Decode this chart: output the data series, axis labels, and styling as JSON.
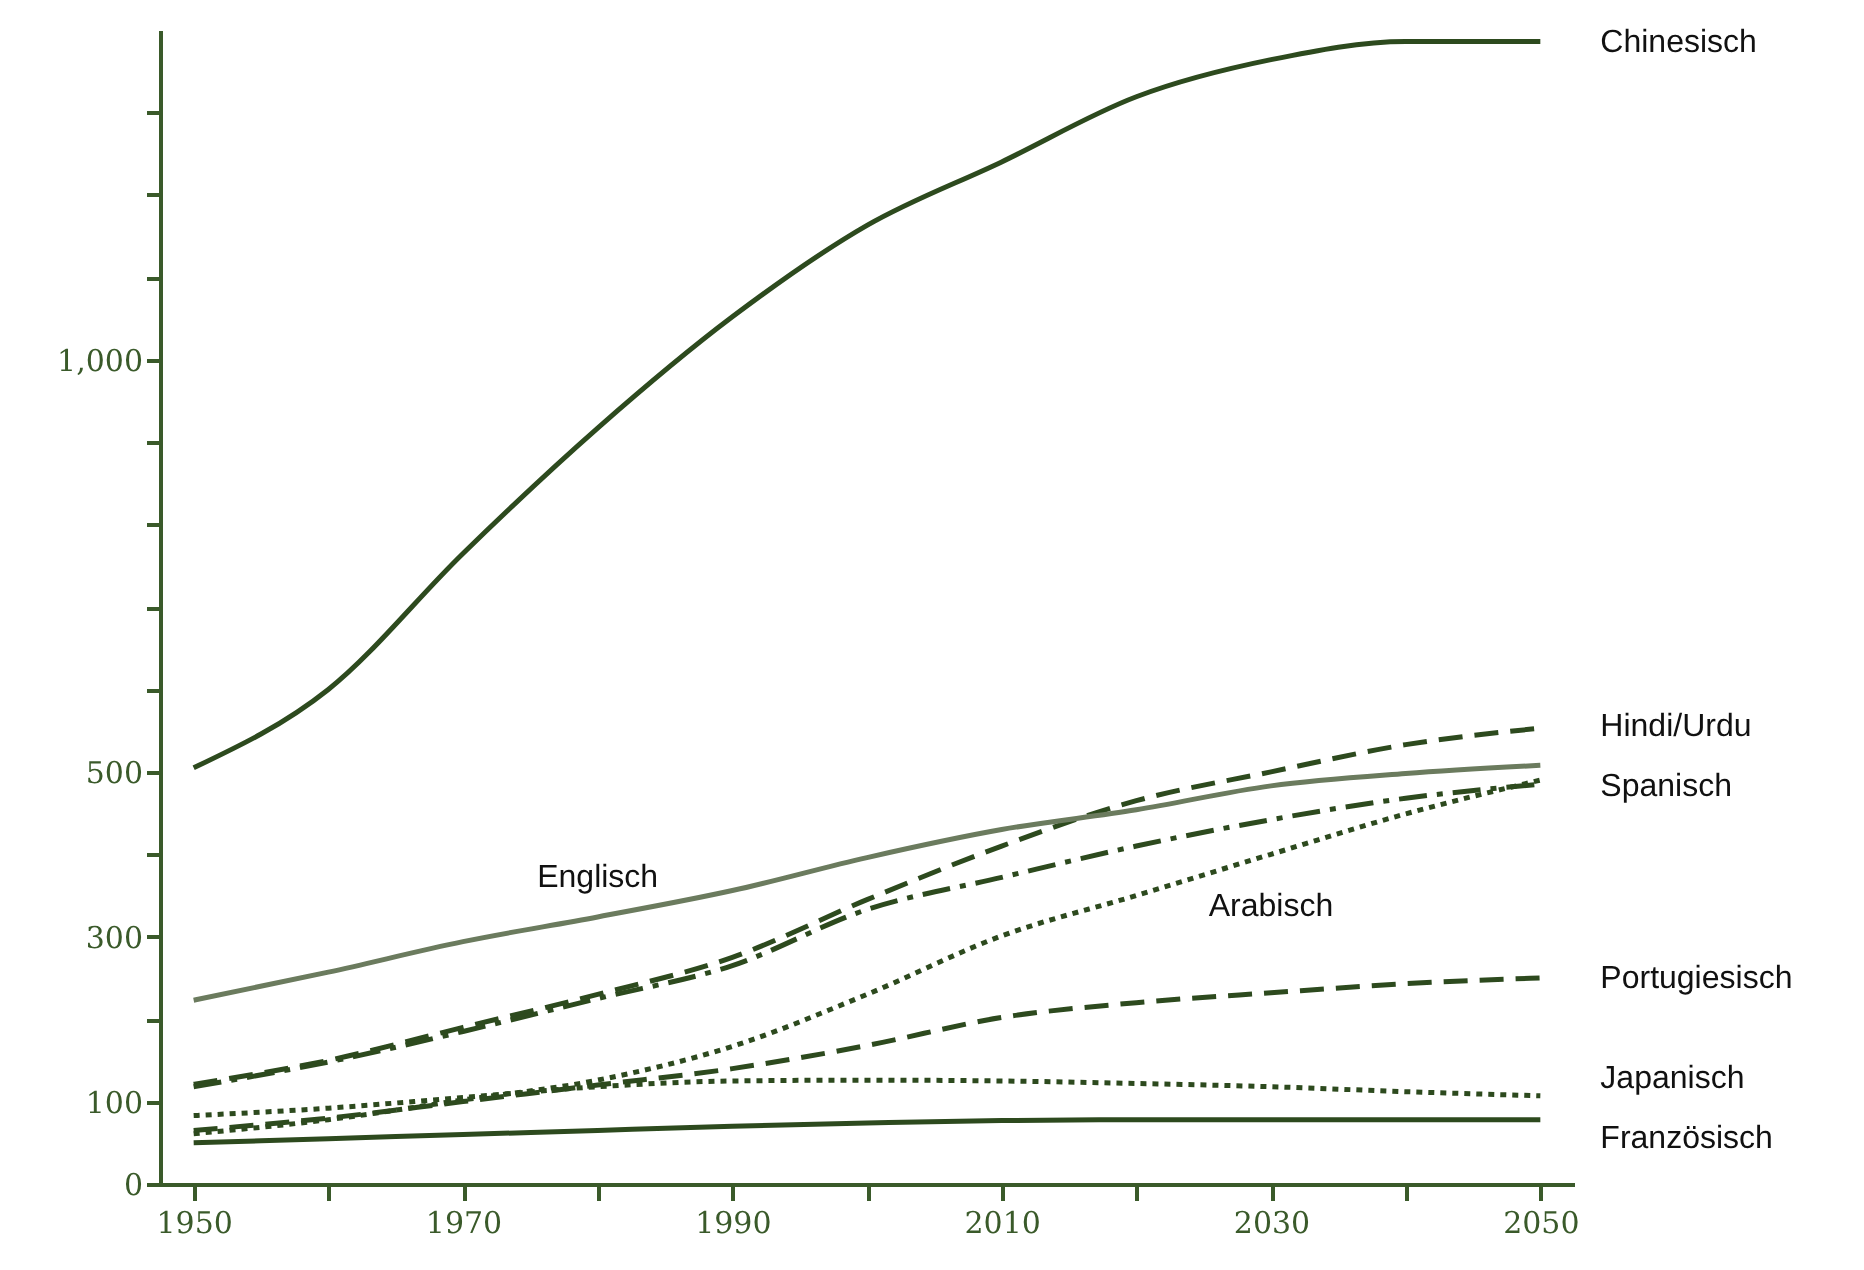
{
  "chart_data": {
    "type": "line",
    "x": [
      1950,
      1960,
      1970,
      1980,
      1990,
      2000,
      2010,
      2020,
      2030,
      2040,
      2050
    ],
    "xlim": [
      1947.5,
      2052.5
    ],
    "xticks": [
      1950,
      {
        "value": 1960,
        "label": null
      },
      1970,
      {
        "value": 1980,
        "label": null
      },
      1990,
      {
        "value": 2000,
        "label": null
      },
      2010,
      {
        "value": 2020,
        "label": null
      },
      2030,
      {
        "value": 2040,
        "label": null
      },
      2050
    ],
    "ylim": [
      0,
      1400
    ],
    "yticks": [
      0,
      100,
      {
        "value": 200,
        "label": null
      },
      300,
      {
        "value": 400,
        "label": null
      },
      500,
      {
        "value": 600,
        "label": null
      },
      {
        "value": 700,
        "label": null
      },
      {
        "value": 800,
        "label": null
      },
      {
        "value": 900,
        "label": null
      },
      {
        "value": 1000,
        "label": "1,000"
      },
      {
        "value": 1100,
        "label": null
      },
      {
        "value": 1200,
        "label": null
      },
      {
        "value": 1300,
        "label": null
      }
    ],
    "grid": false,
    "marker": "none",
    "annotations": [
      {
        "text": "Englisch",
        "x": 1980,
        "y": 324
      },
      {
        "text": "Arabisch",
        "x": 2030,
        "y": 400
      }
    ],
    "series": [
      {
        "name": "Chinesisch",
        "color": "#2d4a1e",
        "line_style": "solid",
        "values": [
          505,
          600,
          765,
          917,
          1052,
          1163,
          1240,
          1319,
          1364,
          1386,
          1386
        ]
      },
      {
        "name": "Hindi/Urdu",
        "color": "#2d4a1e",
        "line_style": "dashed",
        "values": [
          121,
          150,
          190,
          230,
          275,
          345,
          410,
          465,
          500,
          533,
          553
        ]
      },
      {
        "name": "Spanisch",
        "color": "#2d4a1e",
        "line_style": "dashdot",
        "values": [
          118,
          148,
          185,
          225,
          265,
          333,
          372,
          410,
          442,
          468,
          485
        ]
      },
      {
        "color": "#6b7b5e",
        "line_style": "solid",
        "values": [
          223,
          257,
          294,
          324,
          356,
          396,
          430,
          454,
          483,
          498,
          508
        ]
      },
      {
        "color": "#2d4a1e",
        "line_style": "dotted",
        "values": [
          61,
          78,
          102,
          126,
          167,
          230,
          301,
          350,
          400,
          449,
          490
        ]
      },
      {
        "name": "Portugiesisch",
        "color": "#2d4a1e",
        "line_style": "dashed",
        "values": [
          65,
          80,
          100,
          120,
          140,
          168,
          202,
          220,
          232,
          243,
          250
        ]
      },
      {
        "name": "Japanisch",
        "color": "#2d4a1e",
        "line_style": "dotted",
        "values": [
          83,
          92,
          105,
          118,
          125,
          126,
          125,
          122,
          118,
          112,
          107
        ]
      },
      {
        "name": "Französisch",
        "color": "#2d4a1e",
        "line_style": "solid",
        "values": [
          50,
          55,
          60,
          65,
          70,
          74,
          77,
          78,
          78,
          78,
          78
        ]
      }
    ]
  }
}
